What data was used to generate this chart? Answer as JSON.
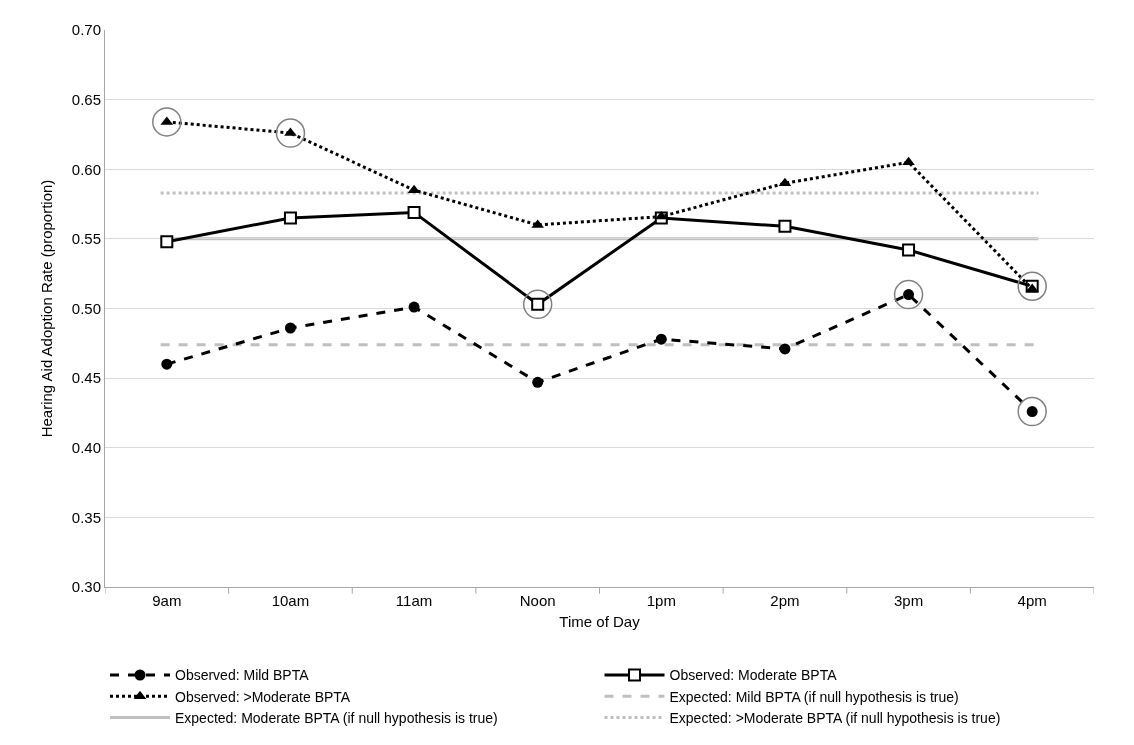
{
  "chart_data": {
    "type": "line",
    "xlabel": "Time of Day",
    "ylabel": "Hearing Aid Adoption Rate (proportion)",
    "categories": [
      "9am",
      "10am",
      "11am",
      "Noon",
      "1pm",
      "2pm",
      "3pm",
      "4pm"
    ],
    "series": [
      {
        "name": "Observed: Mild BPTA",
        "color": "#000000",
        "marker": "circle",
        "line_style": "dashed",
        "values": [
          0.46,
          0.486,
          0.501,
          0.447,
          0.478,
          0.471,
          0.51,
          0.426
        ]
      },
      {
        "name": "Observed: Moderate BPTA",
        "color": "#000000",
        "marker": "square",
        "line_style": "solid",
        "values": [
          0.548,
          0.565,
          0.569,
          0.503,
          0.565,
          0.559,
          0.542,
          0.516
        ]
      },
      {
        "name": "Observed: >Moderate BPTA",
        "color": "#000000",
        "marker": "triangle",
        "line_style": "dotted",
        "values": [
          0.634,
          0.626,
          0.585,
          0.56,
          0.566,
          0.59,
          0.605,
          0.514
        ]
      },
      {
        "type": "scatter",
        "color": "#808080",
        "marker": "circle",
        "values": [
          0.634,
          0.626,
          null,
          0.503,
          null,
          null,
          0.51,
          0.426
        ]
      },
      {
        "type": "scatter",
        "color": "#808080",
        "marker": "circle",
        "values": [
          null,
          null,
          null,
          null,
          null,
          null,
          null,
          0.516
        ]
      }
    ],
    "ref_lines": [
      {
        "axis": "y",
        "value": 0.474,
        "label": "Expected: Mild BPTA (if null hypothesis is true)",
        "color": "#bfbfbf",
        "line_style": "dashed"
      },
      {
        "axis": "y",
        "value": 0.55,
        "label": "Expected: Moderate BPTA (if null hypothesis is true)",
        "color": "#bfbfbf",
        "line_style": "solid"
      },
      {
        "axis": "y",
        "value": 0.583,
        "label": "Expected: >Moderate BPTA (if null hypothesis is true)",
        "color": "#bfbfbf",
        "line_style": "dotted"
      }
    ],
    "ylim": [
      0.3,
      0.7
    ],
    "yticks": [
      {
        "value": 0.3,
        "label": "0.30"
      },
      {
        "value": 0.35,
        "label": "0.35"
      },
      {
        "value": 0.4,
        "label": "0.40"
      },
      {
        "value": 0.45,
        "label": "0.45"
      },
      {
        "value": 0.5,
        "label": "0.50"
      },
      {
        "value": 0.55,
        "label": "0.55"
      },
      {
        "value": 0.6,
        "label": "0.60"
      },
      {
        "value": 0.65,
        "label": "0.65"
      },
      {
        "value": 0.7,
        "label": "0.70"
      }
    ],
    "grid": "y",
    "legend": "bottom"
  }
}
